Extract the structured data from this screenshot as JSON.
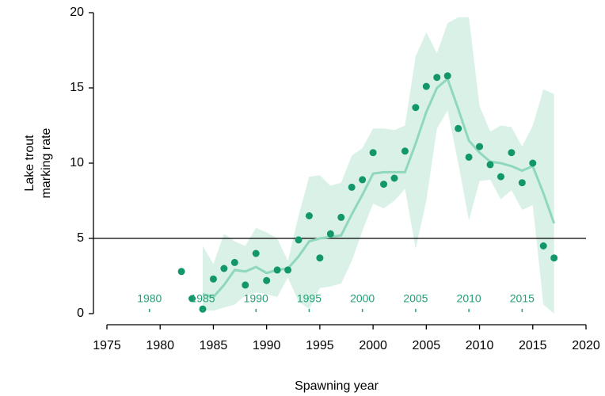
{
  "chart_data": {
    "type": "scatter",
    "xlabel": "Spawning year",
    "ylabel": [
      "Lake trout",
      "marking rate"
    ],
    "xlim": [
      1975,
      2020
    ],
    "xticks": [
      1975,
      1980,
      1985,
      1990,
      1995,
      2000,
      2005,
      2010,
      2015,
      2020
    ],
    "ylim": [
      0,
      20
    ],
    "yticks": [
      0,
      5,
      10,
      15,
      20
    ],
    "x2lim": [
      1976,
      2021
    ],
    "x2ticks": [
      1980,
      1985,
      1990,
      1995,
      2000,
      2005,
      2010,
      2015
    ],
    "x2_color": "#23a077",
    "reference_line": 5,
    "points": {
      "color": "#12976b",
      "x": [
        1982,
        1983,
        1984,
        1985,
        1986,
        1987,
        1988,
        1989,
        1990,
        1991,
        1992,
        1993,
        1994,
        1995,
        1996,
        1997,
        1998,
        1999,
        2000,
        2001,
        2002,
        2003,
        2004,
        2005,
        2006,
        2007,
        2008,
        2009,
        2010,
        2011,
        2012,
        2013,
        2014,
        2015,
        2016,
        2017
      ],
      "values": [
        2.8,
        1.0,
        0.3,
        2.3,
        3.0,
        3.4,
        1.9,
        4.0,
        2.2,
        2.9,
        2.9,
        4.9,
        6.5,
        3.7,
        5.3,
        6.4,
        8.4,
        8.9,
        10.7,
        8.6,
        9.0,
        10.8,
        13.7,
        15.1,
        15.7,
        15.8,
        12.3,
        10.4,
        11.1,
        9.9,
        9.1,
        10.7,
        8.7,
        10.0,
        4.5,
        3.7
      ]
    },
    "trend": {
      "color": "#8fd8bb",
      "band_color": "#d3eee3",
      "x": [
        1984,
        1985,
        1986,
        1987,
        1988,
        1989,
        1990,
        1991,
        1992,
        1993,
        1994,
        1995,
        1996,
        1997,
        1998,
        1999,
        2000,
        2001,
        2002,
        2003,
        2004,
        2005,
        2006,
        2007,
        2008,
        2009,
        2010,
        2011,
        2012,
        2013,
        2014,
        2015,
        2016,
        2017
      ],
      "values": [
        1.3,
        1.1,
        1.9,
        2.9,
        2.8,
        3.1,
        2.7,
        2.9,
        3.0,
        3.8,
        4.8,
        5.0,
        5.1,
        5.2,
        6.6,
        7.9,
        9.3,
        9.4,
        9.4,
        9.4,
        11.3,
        13.4,
        15.0,
        15.6,
        13.6,
        11.5,
        10.7,
        10.1,
        10.0,
        9.8,
        9.5,
        9.8,
        8.0,
        6.0
      ],
      "lower": [
        0.2,
        0.2,
        0.4,
        0.6,
        1.2,
        1.4,
        1.3,
        1.1,
        2.4,
        0.8,
        0.3,
        1.7,
        1.8,
        2.0,
        3.5,
        5.5,
        7.3,
        7.0,
        7.5,
        8.3,
        4.3,
        7.5,
        12.3,
        13.5,
        10.0,
        6.2,
        8.8,
        8.9,
        7.6,
        8.2,
        6.9,
        7.2,
        0.6,
        0.0
      ],
      "upper": [
        4.5,
        3.3,
        5.3,
        4.8,
        4.5,
        5.7,
        5.4,
        5.0,
        3.5,
        6.5,
        9.1,
        9.2,
        8.5,
        8.7,
        10.5,
        11.0,
        12.3,
        12.3,
        12.2,
        12.5,
        17.1,
        18.7,
        17.3,
        19.3,
        19.7,
        19.7,
        13.8,
        12.1,
        12.5,
        12.4,
        11.1,
        12.5,
        14.9,
        14.6
      ]
    }
  }
}
